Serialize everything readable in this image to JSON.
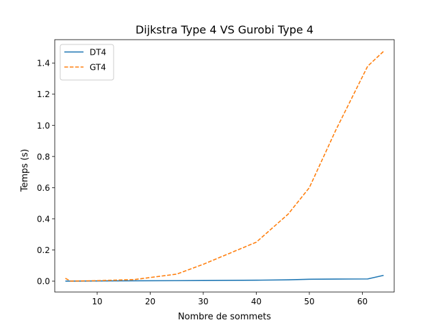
{
  "chart_data": {
    "type": "line",
    "title": "Dijkstra Type 4 VS Gurobi Type 4",
    "xlabel": "Nombre de sommets",
    "ylabel": "Temps (s)",
    "xlim": [
      2.0,
      66.0
    ],
    "ylim": [
      -0.07,
      1.55
    ],
    "xticks": [
      10,
      20,
      30,
      40,
      50,
      60
    ],
    "yticks": [
      0.0,
      0.2,
      0.4,
      0.6,
      0.8,
      1.0,
      1.2,
      1.4
    ],
    "grid": false,
    "legend": {
      "placement": "top-left"
    },
    "series": [
      {
        "name": "DT4",
        "color": "#1f77b4",
        "style": "solid",
        "x": [
          4,
          5,
          10,
          17,
          25,
          30,
          40,
          46,
          50,
          55,
          61,
          64
        ],
        "y": [
          0.0,
          0.0,
          0.001,
          0.002,
          0.003,
          0.004,
          0.006,
          0.008,
          0.012,
          0.013,
          0.014,
          0.037
        ]
      },
      {
        "name": "GT4",
        "color": "#ff7f0e",
        "style": "dashed",
        "x": [
          4,
          5,
          10,
          17,
          25,
          30,
          40,
          46,
          50,
          55,
          61,
          64
        ],
        "y": [
          0.018,
          0.0,
          0.003,
          0.01,
          0.045,
          0.108,
          0.25,
          0.43,
          0.6,
          0.97,
          1.38,
          1.475
        ]
      }
    ]
  }
}
